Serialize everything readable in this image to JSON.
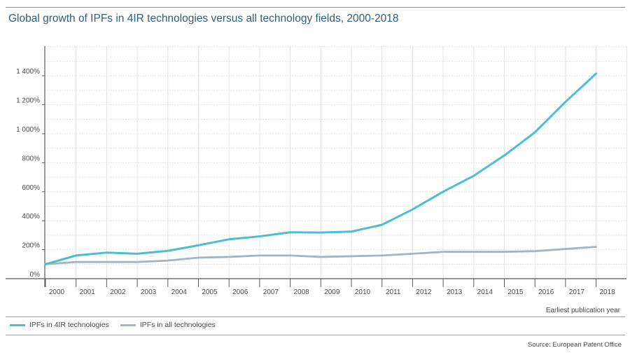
{
  "chart_data": {
    "type": "line",
    "title": "Global growth of IPFs in 4IR technologies versus all technology fields, 2000-2018",
    "xlabel": "Earliest publication year",
    "ylabel": "",
    "categories": [
      "2000",
      "2001",
      "2002",
      "2003",
      "2004",
      "2005",
      "2006",
      "2007",
      "2008",
      "2009",
      "2010",
      "2011",
      "2012",
      "2013",
      "2014",
      "2015",
      "2016",
      "2017",
      "2018"
    ],
    "y_ticks": [
      0,
      200,
      400,
      600,
      800,
      1000,
      1200,
      1400
    ],
    "y_tick_labels": [
      "0%",
      "200%",
      "400%",
      "600%",
      "800%",
      "1 000%",
      "1 200%",
      "1 400%"
    ],
    "ylim": [
      0,
      1600
    ],
    "grid": true,
    "series": [
      {
        "name": "IPFs in 4IR technologies",
        "color": "#4dbfcc",
        "values": [
          100,
          160,
          180,
          172,
          192,
          230,
          272,
          292,
          320,
          318,
          325,
          372,
          478,
          600,
          710,
          850,
          1010,
          1220,
          1415
        ]
      },
      {
        "name": "IPFs in all technologies",
        "color": "#a7b3bf",
        "values": [
          100,
          115,
          115,
          115,
          125,
          145,
          150,
          160,
          160,
          150,
          155,
          160,
          172,
          185,
          185,
          185,
          190,
          205,
          220
        ]
      }
    ],
    "legend_position": "bottom-left",
    "source": "Source: European Patent Office"
  }
}
